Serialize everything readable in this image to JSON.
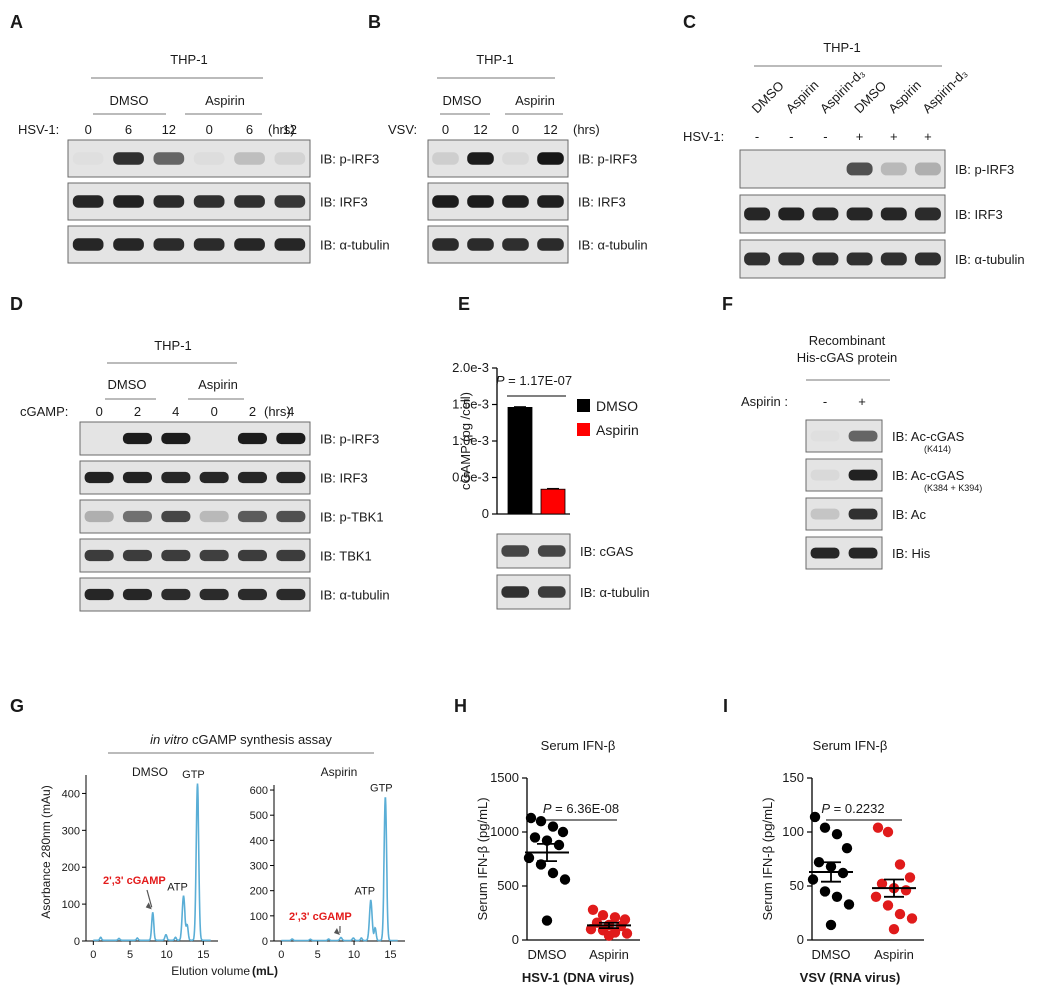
{
  "panels": {
    "A": {
      "letter": "A",
      "cell": "THP-1",
      "groups": [
        "DMSO",
        "Aspirin"
      ],
      "treatment": "HSV-1:",
      "times": [
        "0",
        "6",
        "12",
        "0",
        "6",
        "12"
      ],
      "unit": "(hrs)",
      "blots": [
        {
          "label": "IB: p-IRF3",
          "bands": [
            0.02,
            0.85,
            0.6,
            0.03,
            0.18,
            0.08
          ]
        },
        {
          "label": "IB: IRF3",
          "bands": [
            0.9,
            0.92,
            0.88,
            0.85,
            0.85,
            0.82
          ]
        },
        {
          "label": "IB: α-tubulin",
          "bands": [
            0.9,
            0.9,
            0.88,
            0.88,
            0.9,
            0.9
          ]
        }
      ]
    },
    "B": {
      "letter": "B",
      "cell": "THP-1",
      "groups": [
        "DMSO",
        "Aspirin"
      ],
      "treatment": "VSV:",
      "times": [
        "0",
        "12",
        "0",
        "12"
      ],
      "unit": "(hrs)",
      "blots": [
        {
          "label": "IB: p-IRF3",
          "bands": [
            0.1,
            0.95,
            0.05,
            0.98
          ]
        },
        {
          "label": "IB: IRF3",
          "bands": [
            0.95,
            0.95,
            0.93,
            0.93
          ]
        },
        {
          "label": "IB: α-tubulin",
          "bands": [
            0.88,
            0.88,
            0.86,
            0.88
          ]
        }
      ]
    },
    "C": {
      "letter": "C",
      "cell": "THP-1",
      "columns": [
        "DMSO",
        "Aspirin",
        "Aspirin-d₃",
        "DMSO",
        "Aspirin",
        "Aspirin-d₃"
      ],
      "treatment": "HSV-1:",
      "signs": [
        "-",
        "-",
        "-",
        "+",
        "+",
        "+"
      ],
      "blots": [
        {
          "label": "IB: p-IRF3",
          "bands": [
            0.0,
            0.0,
            0.0,
            0.7,
            0.2,
            0.25
          ]
        },
        {
          "label": "IB: IRF3",
          "bands": [
            0.9,
            0.92,
            0.9,
            0.9,
            0.9,
            0.88
          ]
        },
        {
          "label": "IB: α-tubulin",
          "bands": [
            0.85,
            0.85,
            0.85,
            0.85,
            0.85,
            0.85
          ]
        }
      ]
    },
    "D": {
      "letter": "D",
      "cell": "THP-1",
      "groups": [
        "DMSO",
        "Aspirin"
      ],
      "treatment": "cGAMP:",
      "times": [
        "0",
        "2",
        "4",
        "0",
        "2",
        "4"
      ],
      "unit": "(hrs)",
      "blots": [
        {
          "label": "IB: p-IRF3",
          "bands": [
            0.0,
            0.95,
            0.95,
            0.0,
            0.95,
            0.95
          ]
        },
        {
          "label": "IB: IRF3",
          "bands": [
            0.92,
            0.92,
            0.9,
            0.9,
            0.9,
            0.9
          ]
        },
        {
          "label": "IB: p-TBK1",
          "bands": [
            0.25,
            0.55,
            0.75,
            0.2,
            0.65,
            0.7
          ]
        },
        {
          "label": "IB: TBK1",
          "bands": [
            0.8,
            0.8,
            0.8,
            0.78,
            0.8,
            0.8
          ]
        },
        {
          "label": "IB: α-tubulin",
          "bands": [
            0.9,
            0.9,
            0.88,
            0.88,
            0.88,
            0.88
          ]
        }
      ]
    },
    "E": {
      "letter": "E",
      "blots": [
        {
          "label": "IB: cGAS",
          "bands": [
            0.75,
            0.75
          ]
        },
        {
          "label": "IB: α-tubulin",
          "bands": [
            0.85,
            0.8
          ]
        }
      ]
    },
    "F": {
      "letter": "F",
      "title_line1": "Recombinant",
      "title_line2": "His-cGAS protein",
      "treatment": "Aspirin :",
      "signs": [
        "-",
        "+"
      ],
      "blots": [
        {
          "label": "IB: Ac-cGAS",
          "sublabel": "(K414)",
          "bands": [
            0.02,
            0.6
          ]
        },
        {
          "label": "IB: Ac-cGAS",
          "sublabel": "(K384 + K394)",
          "bands": [
            0.05,
            0.92
          ]
        },
        {
          "label": "IB: Ac",
          "bands": [
            0.15,
            0.85
          ]
        },
        {
          "label": "IB: His",
          "bands": [
            0.9,
            0.9
          ]
        }
      ]
    },
    "G": {
      "letter": "G",
      "assay_title_italic": "in vitro",
      "assay_title_rest": " cGAMP synthesis assay",
      "subplots": [
        {
          "title": "DMSO",
          "ymax": 400,
          "yticks": [
            "0",
            "100",
            "200",
            "300",
            "400"
          ],
          "cgamp": "2',3' cGAMP",
          "atp": "ATP",
          "gtp": "GTP"
        },
        {
          "title": "Aspirin",
          "ymax": 600,
          "yticks": [
            "0",
            "100",
            "200",
            "300",
            "400",
            "500",
            "600"
          ],
          "cgamp": "2',3' cGAMP",
          "atp": "ATP",
          "gtp": "GTP"
        }
      ]
    },
    "H": {
      "letter": "H"
    },
    "I": {
      "letter": "I"
    }
  },
  "chart_data": [
    {
      "id": "E",
      "type": "bar",
      "categories": [
        "DMSO",
        "Aspirin"
      ],
      "values": [
        0.00146,
        0.00034
      ],
      "errors": [
        1e-05,
        1e-05
      ],
      "colors": [
        "#000000",
        "#ff0000"
      ],
      "ylabel": "cGAMP (pg /cell)",
      "ylim": [
        0,
        0.002
      ],
      "yticks": [
        0,
        0.0005,
        0.001,
        0.0015,
        0.002
      ],
      "ytick_labels": [
        "0",
        "0.5e-3",
        "1.0e-3",
        "1.5e-3",
        "2.0e-3"
      ],
      "pvalue_label": "P",
      "pvalue_text": " = 1.17E-07",
      "legend": [
        {
          "name": "DMSO",
          "color": "#000000"
        },
        {
          "name": "Aspirin",
          "color": "#ff0000"
        }
      ],
      "legend_position": "right"
    },
    {
      "id": "G1",
      "type": "line",
      "title": "DMSO",
      "xlabel_main": "Elution volume",
      "xlabel_unit": "(mL)",
      "ylabel": "Asorbance 280nm (mAu)",
      "xlim": [
        -1,
        17
      ],
      "ylim": [
        0,
        450
      ],
      "xticks": [
        0,
        5,
        10,
        15
      ],
      "yticks": [
        0,
        100,
        200,
        300,
        400
      ],
      "color": "#5aaed6",
      "peaks": [
        {
          "x": 8.1,
          "height": 75,
          "width": 0.14
        },
        {
          "x": 9.9,
          "height": 15,
          "width": 0.14
        },
        {
          "x": 12.3,
          "height": 120,
          "width": 0.18
        },
        {
          "x": 12.8,
          "height": 40,
          "width": 0.13
        },
        {
          "x": 14.2,
          "height": 425,
          "width": 0.17
        }
      ],
      "baseline_noise": [
        {
          "x": 1.0,
          "height": 8
        },
        {
          "x": 3.5,
          "height": 5
        },
        {
          "x": 6.0,
          "height": 6
        },
        {
          "x": 11.2,
          "height": 8
        }
      ]
    },
    {
      "id": "G2",
      "type": "line",
      "title": "Aspirin",
      "xlim": [
        -1,
        17
      ],
      "ylim": [
        0,
        620
      ],
      "xticks": [
        0,
        5,
        10,
        15
      ],
      "yticks": [
        0,
        100,
        200,
        300,
        400,
        500,
        600
      ],
      "color": "#5aaed6",
      "peaks": [
        {
          "x": 8.2,
          "height": 12,
          "width": 0.15
        },
        {
          "x": 9.9,
          "height": 10,
          "width": 0.14
        },
        {
          "x": 12.3,
          "height": 160,
          "width": 0.18
        },
        {
          "x": 12.9,
          "height": 50,
          "width": 0.13
        },
        {
          "x": 14.3,
          "height": 570,
          "width": 0.17
        }
      ],
      "baseline_noise": [
        {
          "x": 1.5,
          "height": 6
        },
        {
          "x": 4.0,
          "height": 5
        },
        {
          "x": 6.5,
          "height": 6
        },
        {
          "x": 11.0,
          "height": 10
        }
      ]
    },
    {
      "id": "H",
      "type": "scatter",
      "title": "Serum  IFN-β",
      "ylabel": "Serum  IFN-β (pg/mL)",
      "xlabel": "HSV-1 (DNA virus)",
      "categories": [
        "DMSO",
        "Aspirin"
      ],
      "ylim": [
        0,
        1500
      ],
      "yticks": [
        0,
        500,
        1000,
        1500
      ],
      "pvalue_label": "P",
      "pvalue_text": " = 6.36E-08",
      "series": [
        {
          "name": "DMSO",
          "color": "#000000",
          "mean": 810,
          "sem": 80,
          "values": [
            1130,
            1100,
            1050,
            1000,
            950,
            920,
            880,
            760,
            700,
            620,
            560,
            180
          ]
        },
        {
          "name": "Aspirin",
          "color": "#e01b1b",
          "mean": 135,
          "sem": 25,
          "values": [
            280,
            230,
            210,
            190,
            160,
            140,
            130,
            100,
            90,
            70,
            60,
            40
          ]
        }
      ]
    },
    {
      "id": "I",
      "type": "scatter",
      "title": "Serum  IFN-β",
      "ylabel": "Serum  IFN-β (pg/mL)",
      "xlabel": "VSV (RNA virus)",
      "categories": [
        "DMSO",
        "Aspirin"
      ],
      "ylim": [
        0,
        150
      ],
      "yticks": [
        0,
        50,
        100,
        150
      ],
      "pvalue_label": "P",
      "pvalue_text": " = 0.2232",
      "series": [
        {
          "name": "DMSO",
          "color": "#000000",
          "mean": 63,
          "sem": 9,
          "values": [
            114,
            104,
            98,
            85,
            72,
            68,
            62,
            56,
            45,
            40,
            33,
            14
          ]
        },
        {
          "name": "Aspirin",
          "color": "#e01b1b",
          "mean": 48,
          "sem": 8,
          "values": [
            104,
            100,
            70,
            58,
            52,
            48,
            46,
            40,
            32,
            24,
            20,
            10
          ]
        }
      ]
    }
  ]
}
